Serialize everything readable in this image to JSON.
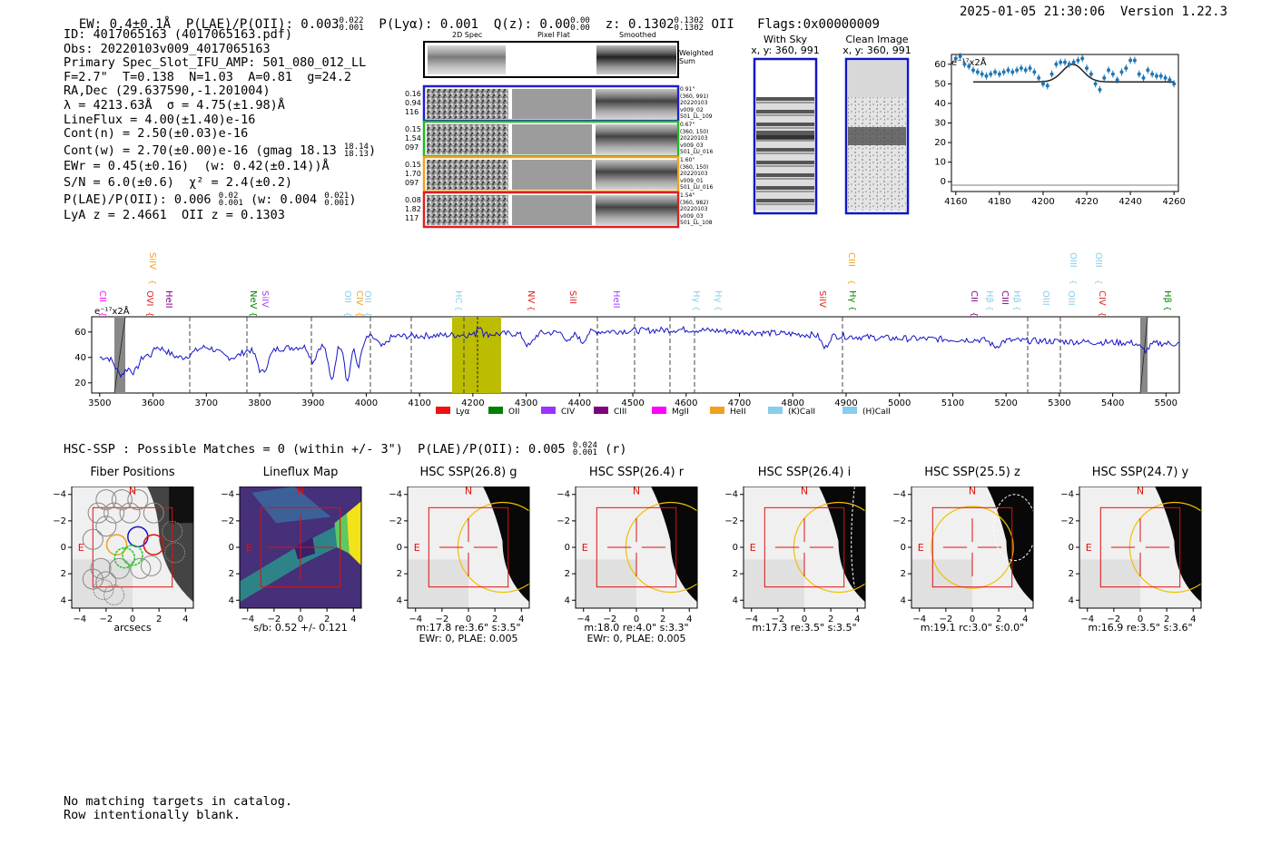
{
  "header": {
    "ew": "EW: 0.4±0.1Å",
    "plae_lbl": "P(LAE)/P(OII): 0.003",
    "plae_hi": "0.022",
    "plae_lo": "0.001",
    "plya": "P(Lyα): 0.001",
    "qz_lbl": "Q(z): 0.00",
    "qz_hi": "0.00",
    "qz_lo": "0.00",
    "z_lbl": "z: 0.1302",
    "z_hi": "0.1302",
    "z_lo": "0.1302",
    "z_line": "OII",
    "flags": "Flags:0x00000009",
    "datetime": "2025-01-05 21:30:06",
    "version": "Version 1.22.3"
  },
  "info": {
    "id": "ID: 4017065163 (4017065163.pdf)",
    "obs": "Obs: 20220103v009_4017065163",
    "primary": "Primary Spec_Slot_IFU_AMP: 501_080_012_LL",
    "fiber": "F=2.7\"  T=0.138  N=1.03  A=0.81  g=24.2",
    "radec": "RA,Dec (29.637590,-1.201004)",
    "lambda": "λ = 4213.63Å  σ = 4.75(±1.98)Å",
    "lineflux": "LineFlux = 4.00(±1.40)e-16",
    "contn": "Cont(n) = 2.50(±0.03)e-16",
    "contw": "Cont(w) = 2.70(±0.00)e-16 (gmag 18.13",
    "gmag_hi": "18.14",
    "gmag_lo": "18.13",
    "ewr": "EWr = 0.45(±0.16)  (w: 0.42(±0.14))Å",
    "sn": "S/N = 6.0(±0.6)  χ² = 2.4(±0.2)",
    "plae": "P(LAE)/P(OII): 0.006",
    "plae_hi": "0.02",
    "plae_lo": "0.001",
    "plae_w": "(w: 0.004",
    "plae_w_hi": "0.021",
    "plae_w_lo": "0.001",
    "lya": "LyA z = 2.4661  OII z = 0.1303"
  },
  "spec2d": {
    "col_labels": [
      "2D Spec",
      "Pixel Flat",
      "Smoothed"
    ],
    "weighted_sum": [
      "Weighted",
      "Sum"
    ],
    "rows": [
      {
        "left": [
          "0.16",
          "0.94",
          "116"
        ],
        "right": [
          "0.91\"",
          "(360, 991)",
          "20220103",
          "v009_02",
          "501_LL_109"
        ],
        "color": "#1f1fcc"
      },
      {
        "left": [
          "0.15",
          "1.54",
          "097"
        ],
        "right": [
          "0.67\"",
          "(360, 150)",
          "20220103",
          "v009_03",
          "501_LU_016"
        ],
        "color": "#22bb22"
      },
      {
        "left": [
          "0.15",
          "1.70",
          "097"
        ],
        "right": [
          "1.60\"",
          "(360, 150)",
          "20220103",
          "v009_01",
          "501_LU_016"
        ],
        "color": "#f0a020"
      },
      {
        "left": [
          "0.08",
          "1.82",
          "117"
        ],
        "right": [
          "1.54\"",
          "(360, 982)",
          "20220103",
          "v009_03",
          "501_LL_108"
        ],
        "color": "#dd2020"
      }
    ]
  },
  "cutouts": {
    "with_sky": "With Sky",
    "with_sky_xy": "x, y: 360, 991",
    "clean": "Clean Image",
    "clean_xy": "x, y: 360, 991"
  },
  "zoom": {
    "scale": "e⁻¹⁷x2Å",
    "x_ticks": [
      "4160",
      "4180",
      "4200",
      "4220",
      "4240",
      "4260"
    ],
    "y_ticks": [
      "60",
      "50",
      "40",
      "30",
      "20",
      "10",
      "0"
    ]
  },
  "full_spec": {
    "scale": "e⁻¹⁷x2Å",
    "x_ticks": [
      "3500",
      "3600",
      "3700",
      "3800",
      "3900",
      "4000",
      "4100",
      "4200",
      "4300",
      "4400",
      "4500",
      "4600",
      "4700",
      "4800",
      "4900",
      "5000",
      "5100",
      "5200",
      "5300",
      "5400",
      "5500"
    ],
    "y_ticks": [
      "60",
      "40",
      "20"
    ],
    "lines_top": [
      {
        "label": "SiIV",
        "color": "#f0a020",
        "x": 161
      },
      {
        "label": "CIII",
        "color": "#f0a020",
        "x": 931
      },
      {
        "label": "OIII",
        "color": "#87ceeb",
        "x": 1175
      },
      {
        "label": "OIII",
        "color": "#87ceeb",
        "x": 1203
      }
    ],
    "lines_low": [
      {
        "label": "CII",
        "color": "#ff00ff",
        "x": 106
      },
      {
        "label": "OVI",
        "color": "#dd2020",
        "x": 158
      },
      {
        "label": "HeII",
        "color": "#800080",
        "x": 179
      },
      {
        "label": "NeV",
        "color": "#008000",
        "x": 272
      },
      {
        "label": "SiIV",
        "color": "#a040ff",
        "x": 285
      },
      {
        "label": "OII",
        "color": "#87ceeb",
        "x": 376
      },
      {
        "label": "CIV",
        "color": "#f0a020",
        "x": 389
      },
      {
        "label": "OII",
        "color": "#87ceeb",
        "x": 398
      },
      {
        "label": "HC",
        "color": "#87ceeb",
        "x": 498
      },
      {
        "label": "NV",
        "color": "#dd2020",
        "x": 578
      },
      {
        "label": "SiII",
        "color": "#dd2020",
        "x": 624
      },
      {
        "label": "HeII",
        "color": "#a040ff",
        "x": 672
      },
      {
        "label": "Hγ",
        "color": "#87ceeb",
        "x": 760
      },
      {
        "label": "Hγ",
        "color": "#87ceeb",
        "x": 784
      },
      {
        "label": "SiIV",
        "color": "#dd2020",
        "x": 899
      },
      {
        "label": "Hγ",
        "color": "#008000",
        "x": 932
      },
      {
        "label": "CII",
        "color": "#800080",
        "x": 1066
      },
      {
        "label": "Hβ",
        "color": "#87ceeb",
        "x": 1083
      },
      {
        "label": "CIII",
        "color": "#800080",
        "x": 1100
      },
      {
        "label": "Hβ",
        "color": "#87ceeb",
        "x": 1113
      },
      {
        "label": "OIII",
        "color": "#87ceeb",
        "x": 1145
      },
      {
        "label": "OIII",
        "color": "#87ceeb",
        "x": 1173
      },
      {
        "label": "CIV",
        "color": "#dd2020",
        "x": 1207
      },
      {
        "label": "Hβ",
        "color": "#008000",
        "x": 1279
      }
    ],
    "legend": [
      {
        "label": "Lyα",
        "color": "#ee1111"
      },
      {
        "label": "OII",
        "color": "#008000"
      },
      {
        "label": "CIV",
        "color": "#9933ff"
      },
      {
        "label": "CIII",
        "color": "#800080"
      },
      {
        "label": "MgII",
        "color": "#ff00ff"
      },
      {
        "label": "HeII",
        "color": "#f0a020"
      },
      {
        "label": "(K)CaII",
        "color": "#87ceeb"
      },
      {
        "label": "(H)CaII",
        "color": "#87ceeb"
      }
    ]
  },
  "hsc": {
    "title": "HSC-SSP : Possible Matches = 0 (within +/- 3\")  P(LAE)/P(OII): 0.005",
    "plae_hi": "0.024",
    "plae_lo": "0.001",
    "band": "(r)",
    "panels": [
      {
        "title": "Fiber Positions",
        "cap1": "arcsecs",
        "cap2": ""
      },
      {
        "title": "Lineflux Map",
        "cap1": "s/b: 0.52 +/- 0.121",
        "cap2": ""
      },
      {
        "title": "HSC SSP(26.8) g",
        "cap1": "m:17.8  re:3.6\"  s:3.5\"",
        "cap2": "EWr: 0, PLAE: 0.005"
      },
      {
        "title": "HSC SSP(26.4) r",
        "cap1": "m:18.0  re:4.0\"  s:3.3\"",
        "cap2": "EWr: 0, PLAE: 0.005"
      },
      {
        "title": "HSC SSP(26.4) i",
        "cap1": "m:17.3  re:3.5\"  s:3.5\"",
        "cap2": ""
      },
      {
        "title": "HSC SSP(25.5) z",
        "cap1": "m:19.1  rc:3.0\"  s:0.0\"",
        "cap2": ""
      },
      {
        "title": "HSC SSP(24.7) y",
        "cap1": "m:16.9  re:3.5\"  s:3.6\"",
        "cap2": ""
      }
    ],
    "ticks": [
      "−4",
      "−2",
      "0",
      "2",
      "4"
    ],
    "yticks": [
      "4",
      "2",
      "0",
      "−2",
      "−4"
    ],
    "n_label": "N",
    "e_label": "E"
  },
  "footer": {
    "line1": "No matching targets in catalog.",
    "line2": "Row intentionally blank."
  }
}
